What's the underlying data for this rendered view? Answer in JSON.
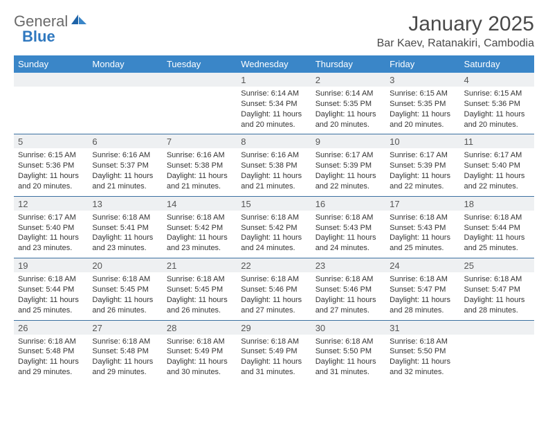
{
  "brand": {
    "part1": "General",
    "part2": "Blue"
  },
  "title": "January 2025",
  "location": "Bar Kaev, Ratanakiri, Cambodia",
  "colors": {
    "header_bg": "#3a86c8",
    "header_text": "#ffffff",
    "daynum_bg": "#eef0f2",
    "border": "#3a6fa0",
    "brand_gray": "#6a6a6a",
    "brand_blue": "#2f78bf"
  },
  "weekdays": [
    "Sunday",
    "Monday",
    "Tuesday",
    "Wednesday",
    "Thursday",
    "Friday",
    "Saturday"
  ],
  "weeks": [
    {
      "nums": [
        "",
        "",
        "",
        "1",
        "2",
        "3",
        "4"
      ],
      "cells": [
        null,
        null,
        null,
        {
          "sunrise": "Sunrise: 6:14 AM",
          "sunset": "Sunset: 5:34 PM",
          "day1": "Daylight: 11 hours",
          "day2": "and 20 minutes."
        },
        {
          "sunrise": "Sunrise: 6:14 AM",
          "sunset": "Sunset: 5:35 PM",
          "day1": "Daylight: 11 hours",
          "day2": "and 20 minutes."
        },
        {
          "sunrise": "Sunrise: 6:15 AM",
          "sunset": "Sunset: 5:35 PM",
          "day1": "Daylight: 11 hours",
          "day2": "and 20 minutes."
        },
        {
          "sunrise": "Sunrise: 6:15 AM",
          "sunset": "Sunset: 5:36 PM",
          "day1": "Daylight: 11 hours",
          "day2": "and 20 minutes."
        }
      ]
    },
    {
      "nums": [
        "5",
        "6",
        "7",
        "8",
        "9",
        "10",
        "11"
      ],
      "cells": [
        {
          "sunrise": "Sunrise: 6:15 AM",
          "sunset": "Sunset: 5:36 PM",
          "day1": "Daylight: 11 hours",
          "day2": "and 20 minutes."
        },
        {
          "sunrise": "Sunrise: 6:16 AM",
          "sunset": "Sunset: 5:37 PM",
          "day1": "Daylight: 11 hours",
          "day2": "and 21 minutes."
        },
        {
          "sunrise": "Sunrise: 6:16 AM",
          "sunset": "Sunset: 5:38 PM",
          "day1": "Daylight: 11 hours",
          "day2": "and 21 minutes."
        },
        {
          "sunrise": "Sunrise: 6:16 AM",
          "sunset": "Sunset: 5:38 PM",
          "day1": "Daylight: 11 hours",
          "day2": "and 21 minutes."
        },
        {
          "sunrise": "Sunrise: 6:17 AM",
          "sunset": "Sunset: 5:39 PM",
          "day1": "Daylight: 11 hours",
          "day2": "and 22 minutes."
        },
        {
          "sunrise": "Sunrise: 6:17 AM",
          "sunset": "Sunset: 5:39 PM",
          "day1": "Daylight: 11 hours",
          "day2": "and 22 minutes."
        },
        {
          "sunrise": "Sunrise: 6:17 AM",
          "sunset": "Sunset: 5:40 PM",
          "day1": "Daylight: 11 hours",
          "day2": "and 22 minutes."
        }
      ]
    },
    {
      "nums": [
        "12",
        "13",
        "14",
        "15",
        "16",
        "17",
        "18"
      ],
      "cells": [
        {
          "sunrise": "Sunrise: 6:17 AM",
          "sunset": "Sunset: 5:40 PM",
          "day1": "Daylight: 11 hours",
          "day2": "and 23 minutes."
        },
        {
          "sunrise": "Sunrise: 6:18 AM",
          "sunset": "Sunset: 5:41 PM",
          "day1": "Daylight: 11 hours",
          "day2": "and 23 minutes."
        },
        {
          "sunrise": "Sunrise: 6:18 AM",
          "sunset": "Sunset: 5:42 PM",
          "day1": "Daylight: 11 hours",
          "day2": "and 23 minutes."
        },
        {
          "sunrise": "Sunrise: 6:18 AM",
          "sunset": "Sunset: 5:42 PM",
          "day1": "Daylight: 11 hours",
          "day2": "and 24 minutes."
        },
        {
          "sunrise": "Sunrise: 6:18 AM",
          "sunset": "Sunset: 5:43 PM",
          "day1": "Daylight: 11 hours",
          "day2": "and 24 minutes."
        },
        {
          "sunrise": "Sunrise: 6:18 AM",
          "sunset": "Sunset: 5:43 PM",
          "day1": "Daylight: 11 hours",
          "day2": "and 25 minutes."
        },
        {
          "sunrise": "Sunrise: 6:18 AM",
          "sunset": "Sunset: 5:44 PM",
          "day1": "Daylight: 11 hours",
          "day2": "and 25 minutes."
        }
      ]
    },
    {
      "nums": [
        "19",
        "20",
        "21",
        "22",
        "23",
        "24",
        "25"
      ],
      "cells": [
        {
          "sunrise": "Sunrise: 6:18 AM",
          "sunset": "Sunset: 5:44 PM",
          "day1": "Daylight: 11 hours",
          "day2": "and 25 minutes."
        },
        {
          "sunrise": "Sunrise: 6:18 AM",
          "sunset": "Sunset: 5:45 PM",
          "day1": "Daylight: 11 hours",
          "day2": "and 26 minutes."
        },
        {
          "sunrise": "Sunrise: 6:18 AM",
          "sunset": "Sunset: 5:45 PM",
          "day1": "Daylight: 11 hours",
          "day2": "and 26 minutes."
        },
        {
          "sunrise": "Sunrise: 6:18 AM",
          "sunset": "Sunset: 5:46 PM",
          "day1": "Daylight: 11 hours",
          "day2": "and 27 minutes."
        },
        {
          "sunrise": "Sunrise: 6:18 AM",
          "sunset": "Sunset: 5:46 PM",
          "day1": "Daylight: 11 hours",
          "day2": "and 27 minutes."
        },
        {
          "sunrise": "Sunrise: 6:18 AM",
          "sunset": "Sunset: 5:47 PM",
          "day1": "Daylight: 11 hours",
          "day2": "and 28 minutes."
        },
        {
          "sunrise": "Sunrise: 6:18 AM",
          "sunset": "Sunset: 5:47 PM",
          "day1": "Daylight: 11 hours",
          "day2": "and 28 minutes."
        }
      ]
    },
    {
      "nums": [
        "26",
        "27",
        "28",
        "29",
        "30",
        "31",
        ""
      ],
      "cells": [
        {
          "sunrise": "Sunrise: 6:18 AM",
          "sunset": "Sunset: 5:48 PM",
          "day1": "Daylight: 11 hours",
          "day2": "and 29 minutes."
        },
        {
          "sunrise": "Sunrise: 6:18 AM",
          "sunset": "Sunset: 5:48 PM",
          "day1": "Daylight: 11 hours",
          "day2": "and 29 minutes."
        },
        {
          "sunrise": "Sunrise: 6:18 AM",
          "sunset": "Sunset: 5:49 PM",
          "day1": "Daylight: 11 hours",
          "day2": "and 30 minutes."
        },
        {
          "sunrise": "Sunrise: 6:18 AM",
          "sunset": "Sunset: 5:49 PM",
          "day1": "Daylight: 11 hours",
          "day2": "and 31 minutes."
        },
        {
          "sunrise": "Sunrise: 6:18 AM",
          "sunset": "Sunset: 5:50 PM",
          "day1": "Daylight: 11 hours",
          "day2": "and 31 minutes."
        },
        {
          "sunrise": "Sunrise: 6:18 AM",
          "sunset": "Sunset: 5:50 PM",
          "day1": "Daylight: 11 hours",
          "day2": "and 32 minutes."
        },
        null
      ]
    }
  ]
}
